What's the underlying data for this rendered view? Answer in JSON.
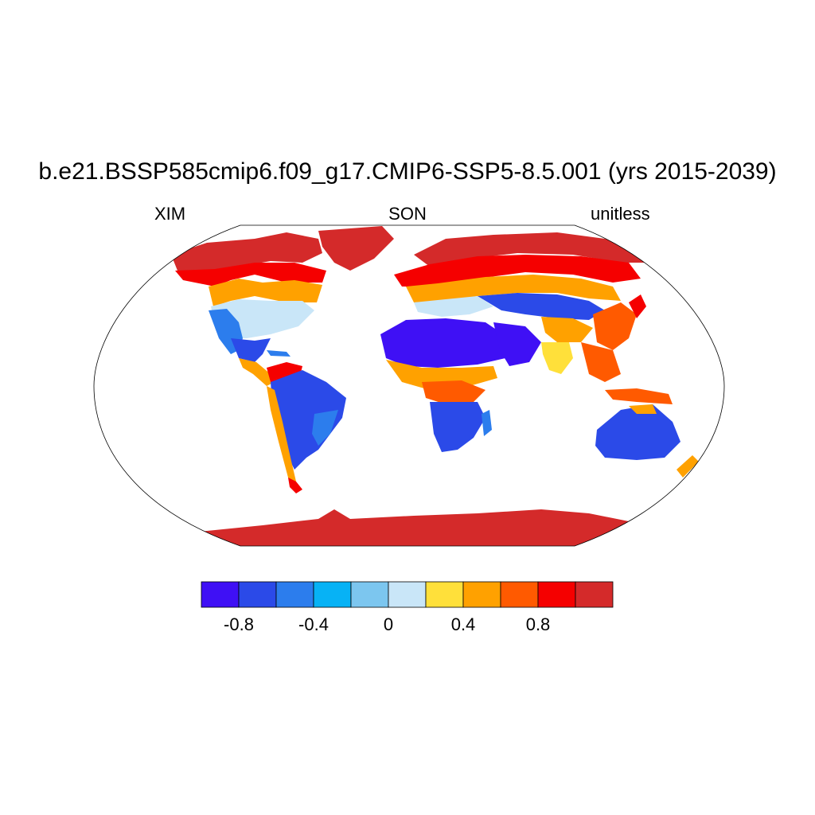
{
  "figure": {
    "title": "b.e21.BSSP585cmip6.f09_g17.CMIP6-SSP5-8.5.001 (yrs 2015-2039)",
    "left_label": "XIM",
    "center_label": "SON",
    "right_label": "unitless"
  },
  "projection": "robinson",
  "colorbar": {
    "colors": [
      "#3f10f5",
      "#2b4ae8",
      "#2c7ded",
      "#07b2f5",
      "#7cc6ef",
      "#c9e6f8",
      "#ffe03a",
      "#ffa100",
      "#ff5a00",
      "#f50000",
      "#d42a2a"
    ],
    "tick_labels": [
      "-0.8",
      "-0.4",
      "0",
      "0.4",
      "0.8"
    ]
  },
  "regions_colors": {
    "arctic": "#d42a2a",
    "high_lat": "#f50000",
    "mid_lat_warm": "#ffa100",
    "temperate": "#c9e6f8",
    "moderate": "#2c7ded",
    "dry": "#3f10f5",
    "humid": "#ff5a00",
    "yellow": "#ffe03a"
  }
}
